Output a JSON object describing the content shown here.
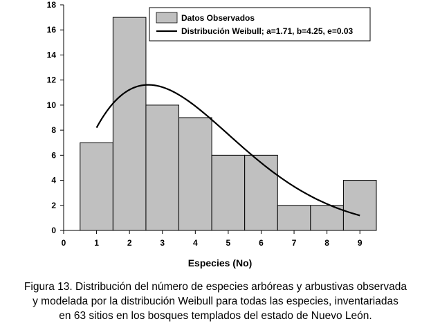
{
  "chart_data": {
    "type": "bar",
    "title": "",
    "xlabel": "Especies (No)",
    "ylabel": "",
    "xlim": [
      0,
      9.5
    ],
    "ylim": [
      0,
      18
    ],
    "x_ticks": [
      "0",
      "1",
      "2",
      "3",
      "4",
      "5",
      "6",
      "7",
      "8",
      "9"
    ],
    "y_ticks": [
      "0",
      "2",
      "4",
      "6",
      "8",
      "10",
      "12",
      "14",
      "16",
      "18"
    ],
    "bar_color": "#c0c0c0",
    "line_color": "#000000",
    "series": [
      {
        "name": "Datos Observados",
        "type": "bar",
        "categories": [
          1,
          2,
          3,
          4,
          5,
          6,
          7,
          8,
          9
        ],
        "values": [
          7,
          17,
          10,
          9,
          6,
          6,
          2,
          2,
          4
        ]
      },
      {
        "name": "Distribución Weibull; a=1.71, b=4.25, e=0.03",
        "type": "line",
        "parameters": {
          "a": 1.71,
          "b": 4.25,
          "e": 0.03,
          "n": 63
        }
      }
    ],
    "legend": [
      "Datos Observados",
      "Distribución Weibull; a=1.71, b=4.25, e=0.03"
    ],
    "legend_position": "top-right"
  },
  "caption": [
    "Figura 13. Distribución del número de especies arbóreas y arbustivas observada",
    "y modelada por la distribución Weibull para todas las especies, inventariadas",
    "en 63 sitios en los bosques templados del estado de Nuevo León."
  ]
}
